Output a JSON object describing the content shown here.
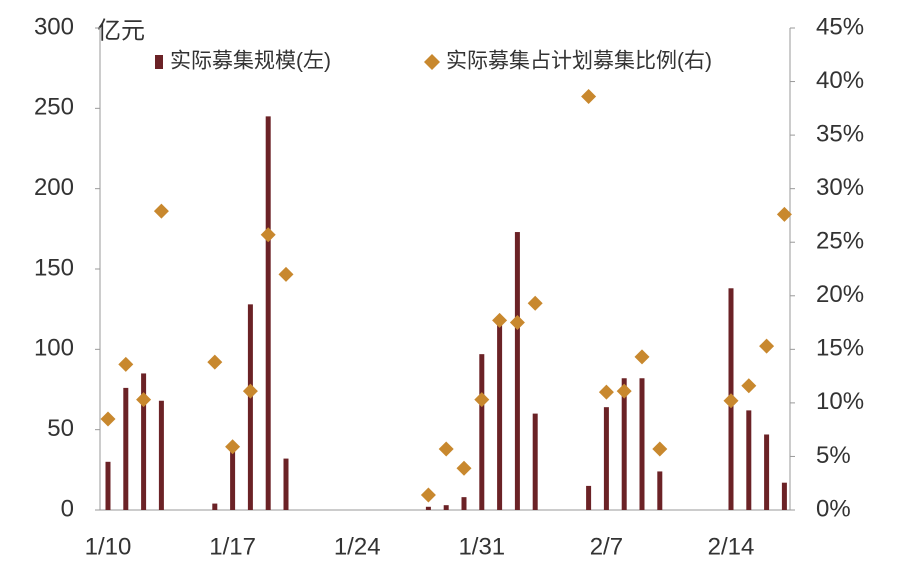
{
  "chart_data": {
    "type": "bar",
    "y_unit": "亿元",
    "categories": [
      "1/10",
      null,
      null,
      null,
      null,
      null,
      null,
      "1/17",
      null,
      null,
      null,
      null,
      null,
      null,
      "1/24",
      null,
      null,
      null,
      null,
      null,
      null,
      "1/31",
      null,
      null,
      null,
      null,
      null,
      null,
      "2/7",
      null,
      null,
      null,
      null,
      null,
      null,
      "2/14",
      null,
      null,
      null
    ],
    "series": [
      {
        "name": "实际募集规模(左)",
        "type": "bar",
        "color": "#6b2226",
        "values": [
          30,
          76,
          85,
          68,
          null,
          null,
          4,
          37,
          128,
          245,
          32,
          null,
          null,
          null,
          null,
          null,
          null,
          null,
          2,
          3,
          8,
          97,
          117,
          173,
          60,
          null,
          null,
          15,
          64,
          82,
          82,
          24,
          null,
          null,
          null,
          138,
          62,
          47,
          17
        ]
      },
      {
        "name": "实际募集占计划募集比例(右)",
        "type": "scatter",
        "marker": "diamond",
        "axis": "y2",
        "color": "#c8882e",
        "values": [
          8.5,
          13.6,
          10.3,
          27.9,
          null,
          null,
          13.8,
          5.9,
          11.1,
          25.7,
          22.0,
          null,
          null,
          null,
          null,
          null,
          null,
          null,
          1.4,
          5.7,
          3.9,
          10.3,
          17.7,
          17.5,
          19.3,
          null,
          null,
          38.6,
          11.0,
          11.1,
          14.3,
          5.7,
          null,
          null,
          null,
          10.2,
          11.6,
          15.3,
          27.6
        ]
      }
    ],
    "ylim": [
      0,
      300
    ],
    "yticks": [
      0,
      50,
      100,
      150,
      200,
      250,
      300
    ],
    "y2lim": [
      0,
      45
    ],
    "y2ticks": [
      {
        "value": 0,
        "label": "0%"
      },
      {
        "value": 5,
        "label": "5%"
      },
      {
        "value": 10,
        "label": "10%"
      },
      {
        "value": 15,
        "label": "15%"
      },
      {
        "value": 20,
        "label": "20%"
      },
      {
        "value": 25,
        "label": "25%"
      },
      {
        "value": 30,
        "label": "30%"
      },
      {
        "value": 35,
        "label": "35%"
      },
      {
        "value": 40,
        "label": "40%"
      },
      {
        "value": 45,
        "label": "45%"
      }
    ],
    "grid": false
  }
}
